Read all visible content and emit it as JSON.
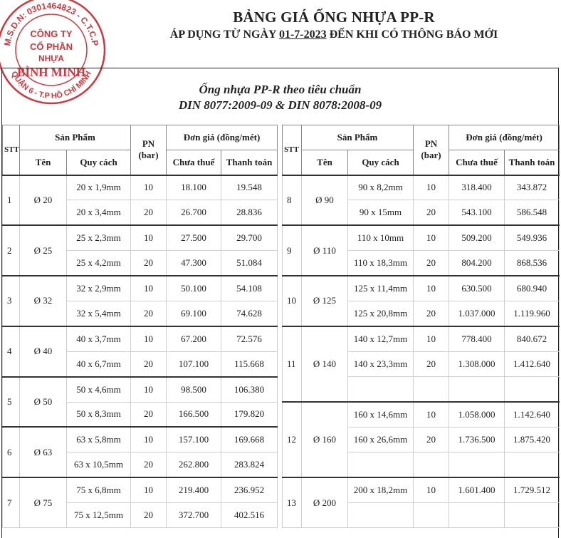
{
  "header": {
    "title": "BẢNG GIÁ ỐNG NHỰA PP-R",
    "subtitle_prefix": "ÁP DỤNG TỪ NGÀY ",
    "subtitle_date": "01-7-2023",
    "subtitle_suffix": " ĐẾN KHI CÓ THÔNG BÁO MỚI"
  },
  "stamp": {
    "ring_top": "M.S.D.N: 0301464823 - C.T.C.P",
    "ring_bottom": "QUẬN 6 - T.P HỒ CHÍ MINH",
    "line1": "CÔNG TY",
    "line2": "CỔ PHẦN",
    "line3": "NHỰA",
    "line4": "BÌNH MINH",
    "color": "#d8333a"
  },
  "standard": {
    "line1": "Ống nhựa PP-R theo tiêu chuẩn",
    "line2": "DIN 8077:2009-09 & DIN 8078:2008-09"
  },
  "columns": {
    "stt": "STT",
    "product": "Sản Phẩm",
    "name": "Tên",
    "spec": "Quy cách",
    "pn": "PN",
    "pn_unit": "(bar)",
    "price": "Đơn giá (đồng/mét)",
    "pre_tax": "Chưa thuế",
    "total": "Thanh toán"
  },
  "left_groups": [
    {
      "stt": "1",
      "name": "Ø 20",
      "rows": [
        [
          "20 x 1,9mm",
          "10",
          "18.100",
          "19.548"
        ],
        [
          "20 x 3,4mm",
          "20",
          "26.700",
          "28.836"
        ]
      ]
    },
    {
      "stt": "2",
      "name": "Ø 25",
      "rows": [
        [
          "25 x 2,3mm",
          "10",
          "27.500",
          "29.700"
        ],
        [
          "25 x 4,2mm",
          "20",
          "47.300",
          "51.084"
        ]
      ]
    },
    {
      "stt": "3",
      "name": "Ø 32",
      "rows": [
        [
          "32 x 2,9mm",
          "10",
          "50.100",
          "54.108"
        ],
        [
          "32 x 5,4mm",
          "20",
          "69.100",
          "74.628"
        ]
      ]
    },
    {
      "stt": "4",
      "name": "Ø 40",
      "rows": [
        [
          "40 x 3,7mm",
          "10",
          "67.200",
          "72.576"
        ],
        [
          "40 x 6,7mm",
          "20",
          "107.100",
          "115.668"
        ]
      ]
    },
    {
      "stt": "5",
      "name": "Ø 50",
      "rows": [
        [
          "50 x 4,6mm",
          "10",
          "98.500",
          "106.380"
        ],
        [
          "50 x 8,3mm",
          "20",
          "166.500",
          "179.820"
        ]
      ]
    },
    {
      "stt": "6",
      "name": "Ø 63",
      "rows": [
        [
          "63 x 5,8mm",
          "10",
          "157.100",
          "169.668"
        ],
        [
          "63 x 10,5mm",
          "20",
          "262.800",
          "283.824"
        ]
      ]
    },
    {
      "stt": "7",
      "name": "Ø 75",
      "rows": [
        [
          "75 x 6,8mm",
          "10",
          "219.400",
          "236.952"
        ],
        [
          "75 x 12,5mm",
          "20",
          "372.700",
          "402.516"
        ]
      ]
    }
  ],
  "right_groups": [
    {
      "stt": "8",
      "name": "Ø 90",
      "rows": [
        [
          "90 x 8,2mm",
          "10",
          "318.400",
          "343.872"
        ],
        [
          "90 x 15mm",
          "20",
          "543.100",
          "586.548"
        ]
      ]
    },
    {
      "stt": "9",
      "name": "Ø 110",
      "rows": [
        [
          "110 x 10mm",
          "10",
          "509.200",
          "549.936"
        ],
        [
          "110 x 18,3mm",
          "20",
          "804.200",
          "868.536"
        ]
      ]
    },
    {
      "stt": "10",
      "name": "Ø 125",
      "rows": [
        [
          "125 x 11,4mm",
          "10",
          "630.500",
          "680.940"
        ],
        [
          "125 x 20,8mm",
          "20",
          "1.037.000",
          "1.119.960"
        ]
      ]
    },
    {
      "stt": "11",
      "name": "Ø 140",
      "rows": [
        [
          "140 x 12,7mm",
          "10",
          "778.400",
          "840.672"
        ],
        [
          "140 x 23,3mm",
          "20",
          "1.308.000",
          "1.412.640"
        ],
        [
          "",
          "",
          "",
          ""
        ]
      ]
    },
    {
      "stt": "12",
      "name": "Ø 160",
      "rows": [
        [
          "160 x 14,6mm",
          "10",
          "1.058.000",
          "1.142.640"
        ],
        [
          "160 x 26,6mm",
          "20",
          "1.736.500",
          "1.875.420"
        ],
        [
          "",
          "",
          "",
          ""
        ]
      ]
    },
    {
      "stt": "13",
      "name": "Ø 200",
      "rows": [
        [
          "200 x 18,2mm",
          "10",
          "1.601.400",
          "1.729.512"
        ],
        [
          "",
          "",
          "",
          ""
        ]
      ]
    }
  ]
}
